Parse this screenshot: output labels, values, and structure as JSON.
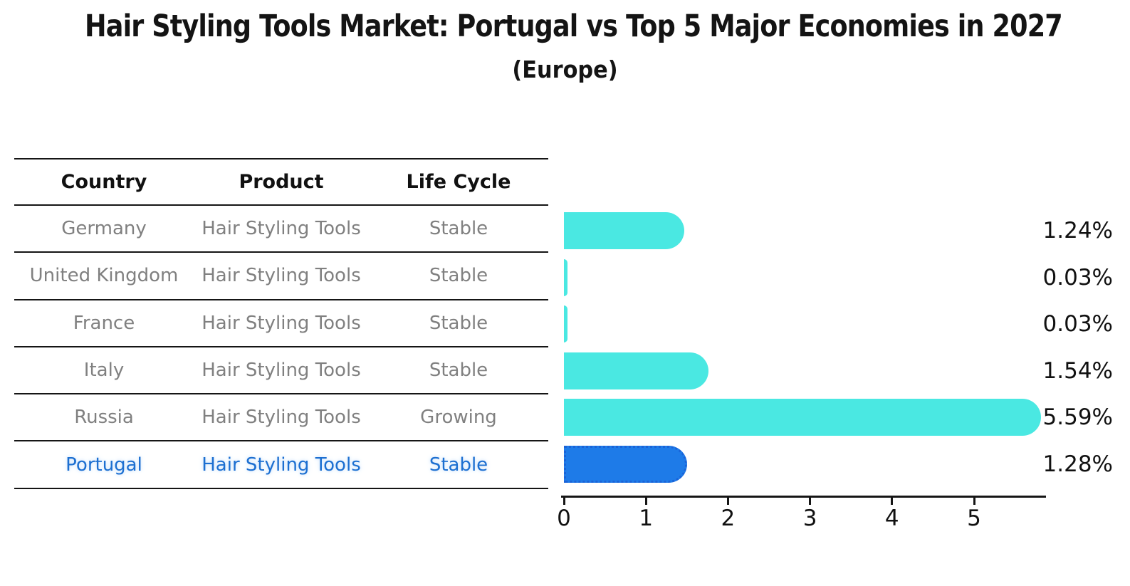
{
  "header": {
    "title": "Hair Styling Tools Market: Portugal vs Top 5 Major Economies in 2027",
    "subtitle": "(Europe)"
  },
  "table": {
    "columns": [
      "Country",
      "Product",
      "Life Cycle"
    ],
    "rows": [
      {
        "country": "Germany",
        "product": "Hair Styling Tools",
        "life_cycle": "Stable",
        "highlight": false
      },
      {
        "country": "United Kingdom",
        "product": "Hair Styling Tools",
        "life_cycle": "Stable",
        "highlight": false
      },
      {
        "country": "France",
        "product": "Hair Styling Tools",
        "life_cycle": "Stable",
        "highlight": false
      },
      {
        "country": "Italy",
        "product": "Hair Styling Tools",
        "life_cycle": "Stable",
        "highlight": false
      },
      {
        "country": "Russia",
        "product": "Hair Styling Tools",
        "life_cycle": "Growing",
        "highlight": false
      },
      {
        "country": "Portugal",
        "product": "Hair Styling Tools",
        "life_cycle": "Stable",
        "highlight": true
      }
    ]
  },
  "chart_data": {
    "type": "bar",
    "orientation": "horizontal",
    "title": "Hair Styling Tools Market: Portugal vs Top 5 Major Economies in 2027 (Europe)",
    "categories": [
      "Germany",
      "United Kingdom",
      "France",
      "Italy",
      "Russia",
      "Portugal"
    ],
    "values": [
      1.24,
      0.03,
      0.03,
      1.54,
      5.59,
      1.28
    ],
    "value_labels": [
      "1.24%",
      "0.03%",
      "0.03%",
      "1.54%",
      "5.59%",
      "1.28%"
    ],
    "xticks": [
      "0",
      "1",
      "2",
      "3",
      "4",
      "5"
    ],
    "xlim": [
      0,
      5.9
    ],
    "grid": false,
    "legend": "none",
    "highlight_index": 5,
    "colors": {
      "bar": "#4AE8E2",
      "highlight_bar": "#1E7BE8",
      "highlight_border": "#1A63D8",
      "row_text": "#808080",
      "highlight_text": "#1C6FD1",
      "axis": "#151515",
      "label_text": "#111111"
    }
  }
}
